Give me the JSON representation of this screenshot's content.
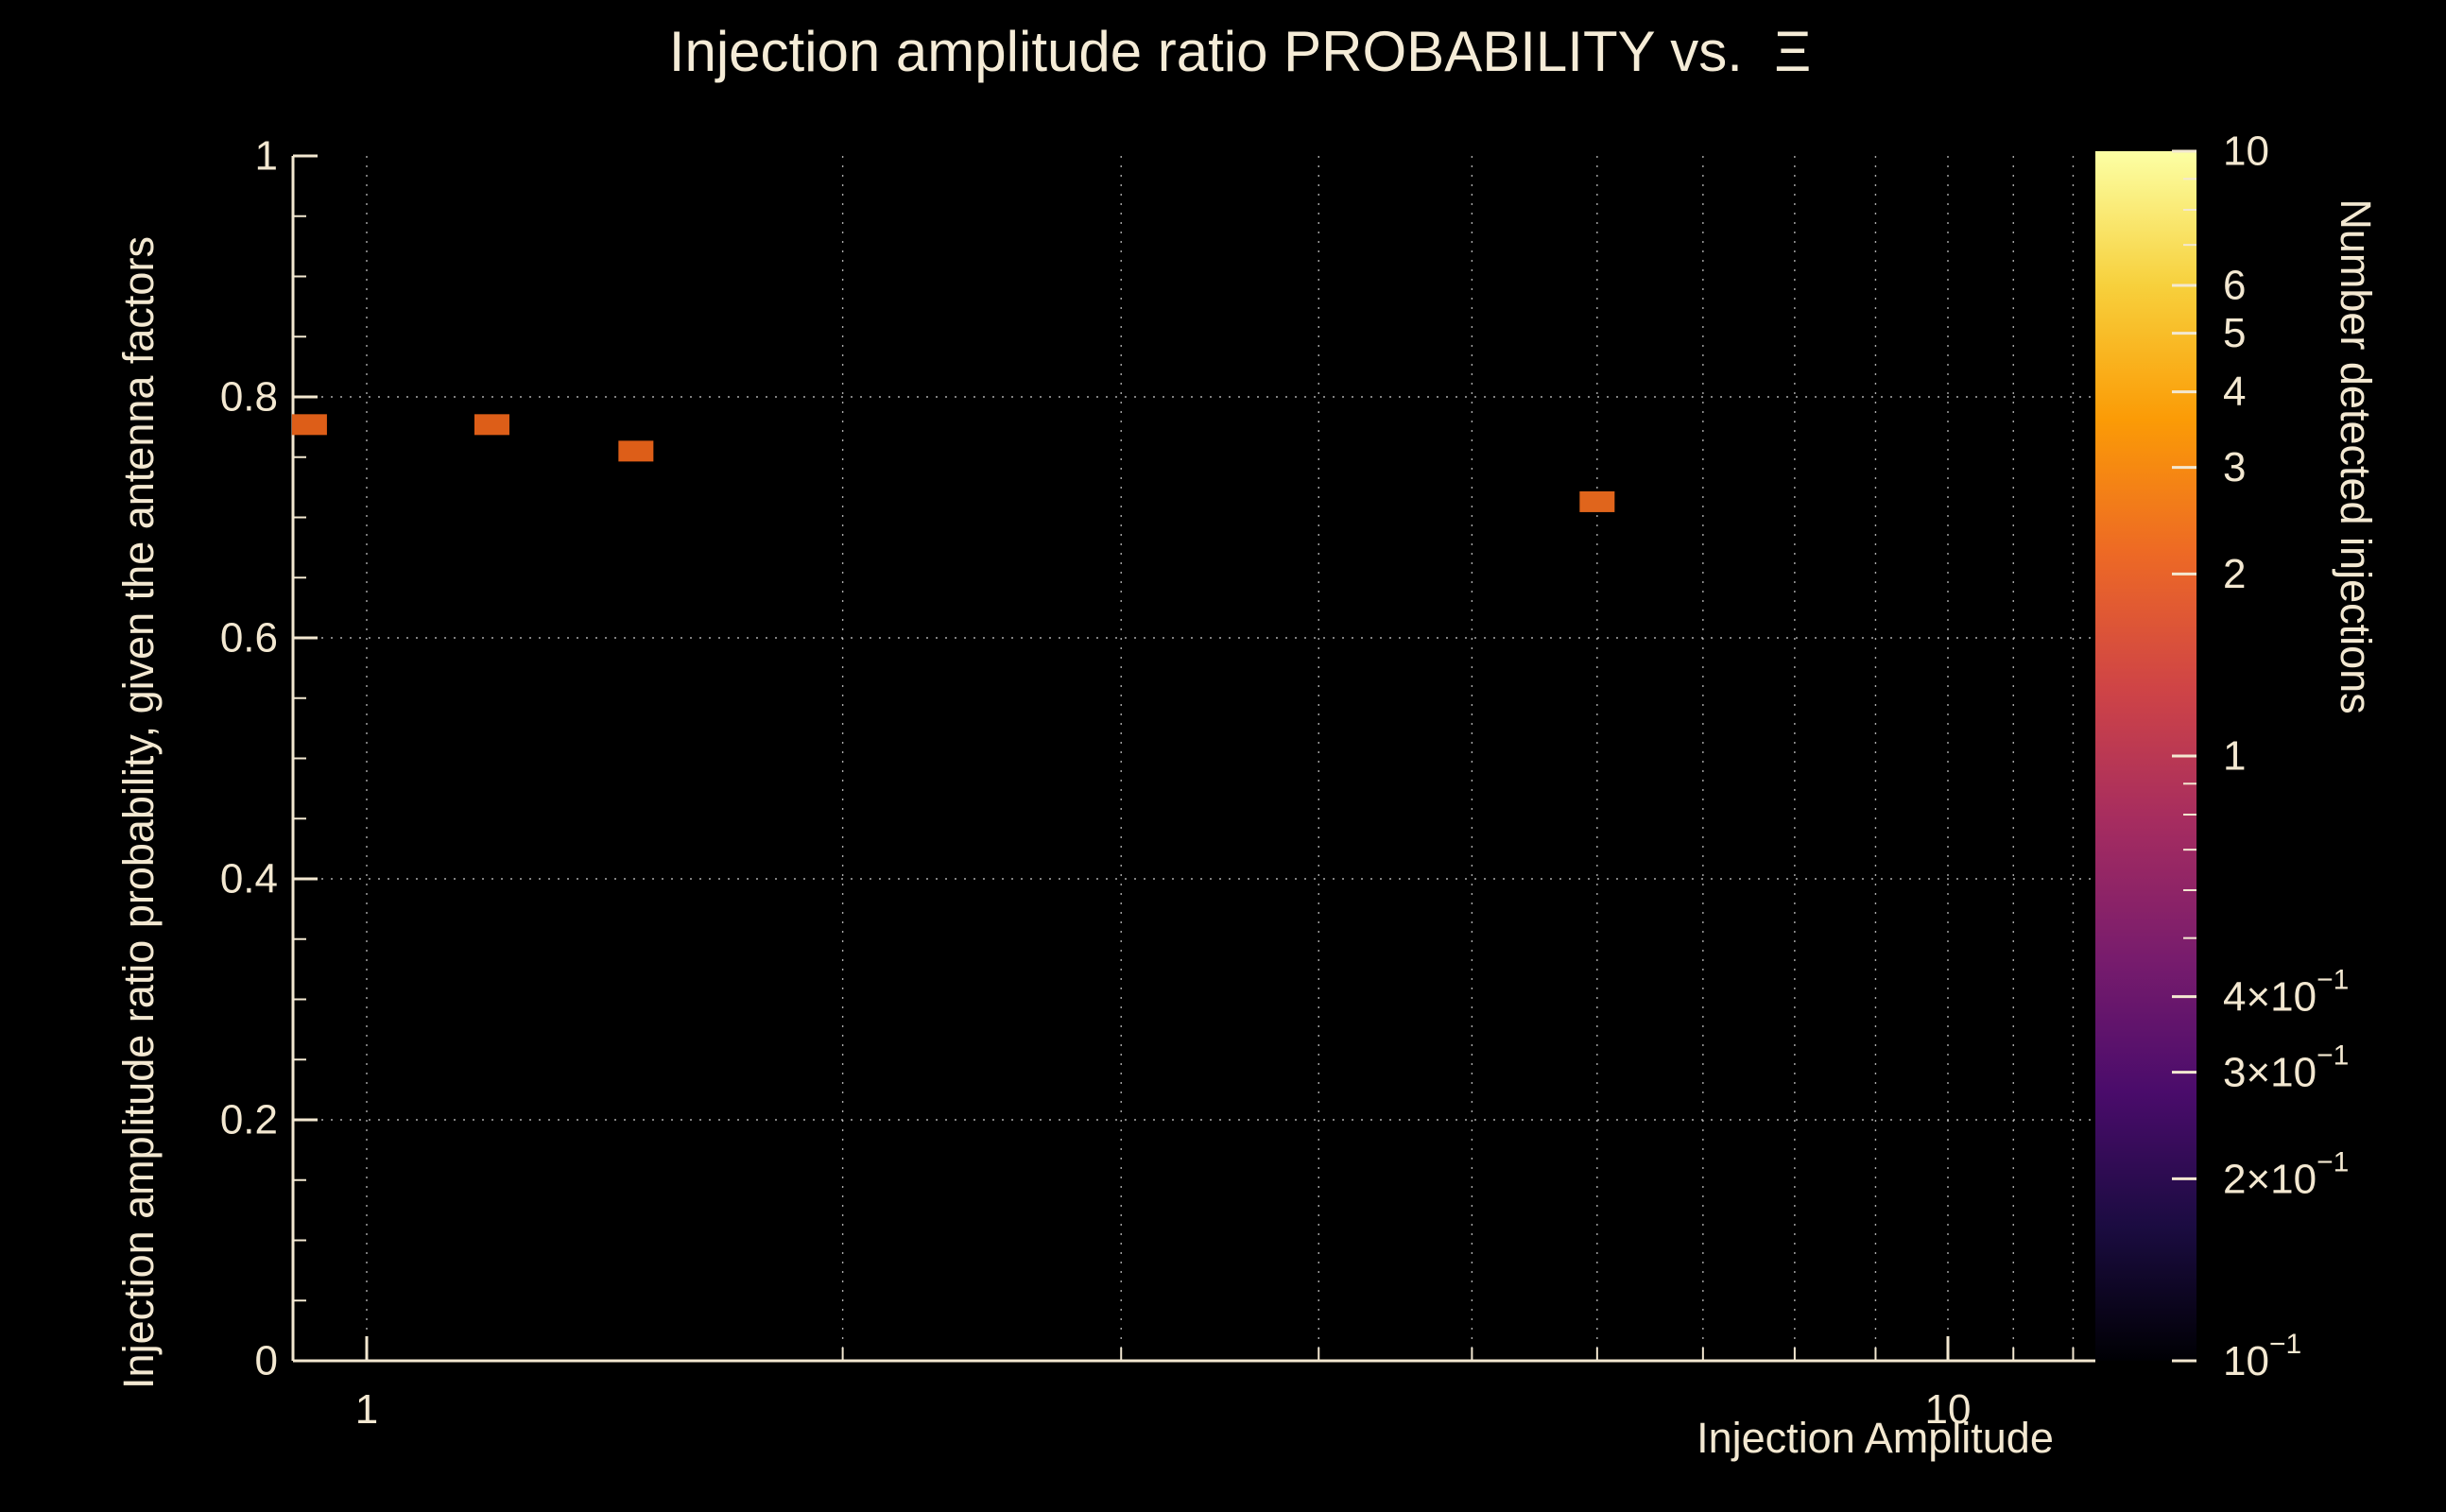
{
  "title": "Injection amplitude ratio PROBABILITY vs.  Ξ",
  "colors": {
    "background": "#000000",
    "text": "#f3e8d1",
    "axis": "#f3e8d1",
    "grid": "#c9c9c9"
  },
  "chart_data": {
    "type": "heatmap",
    "title": "Injection amplitude ratio PROBABILITY vs.  Ξ",
    "xlabel": "Injection Amplitude",
    "ylabel": "Injection amplitude ratio probability, given the antenna factors",
    "x_scale": "log",
    "xlim": [
      0.9,
      12.4
    ],
    "ylim": [
      0,
      1
    ],
    "grid": true,
    "x_tick_values": [
      1,
      10
    ],
    "x_tick_labels": [
      "1",
      "10"
    ],
    "x_minor_ticks": [
      2,
      3,
      4,
      5,
      6,
      7,
      8,
      9,
      11,
      12
    ],
    "y_tick_values": [
      0,
      0.2,
      0.4,
      0.6,
      0.8,
      1
    ],
    "y_tick_labels": [
      "0",
      "0.2",
      "0.4",
      "0.6",
      "0.8",
      "1"
    ],
    "grid_x_values": [
      1,
      2,
      3,
      4,
      5,
      6,
      7,
      8,
      9,
      10,
      11,
      12
    ],
    "grid_y_values": [
      0.2,
      0.4,
      0.6,
      0.8
    ],
    "points": [
      {
        "x": 0.92,
        "y": 0.777,
        "count": 1,
        "color": "#dd5e18"
      },
      {
        "x": 1.2,
        "y": 0.777,
        "count": 1,
        "color": "#dd5e18"
      },
      {
        "x": 1.48,
        "y": 0.755,
        "count": 1,
        "color": "#dd5e18"
      },
      {
        "x": 6.0,
        "y": 0.713,
        "count": 1,
        "color": "#e0651c"
      }
    ],
    "colorbar": {
      "label": "Number detected injections",
      "scale": "log",
      "min": 0.1,
      "max": 10,
      "tick_values": [
        10,
        6,
        5,
        4,
        3,
        2,
        1,
        0.4,
        0.3,
        0.2,
        0.1
      ],
      "tick_labels": [
        "10",
        "6",
        "5",
        "4",
        "3",
        "2",
        "1",
        "4×10^−1",
        "3×10^−1",
        "2×10^−1",
        "10^−1"
      ],
      "minor_tick_values": [
        9,
        8,
        7,
        0.9,
        0.8,
        0.7,
        0.6,
        0.5
      ],
      "gradient_stops": [
        "#000004",
        "#1b0c41",
        "#4a0c6b",
        "#781c6d",
        "#a52c60",
        "#cf4446",
        "#ed6925",
        "#fb9b06",
        "#f7d03c",
        "#fcffa4"
      ]
    }
  }
}
